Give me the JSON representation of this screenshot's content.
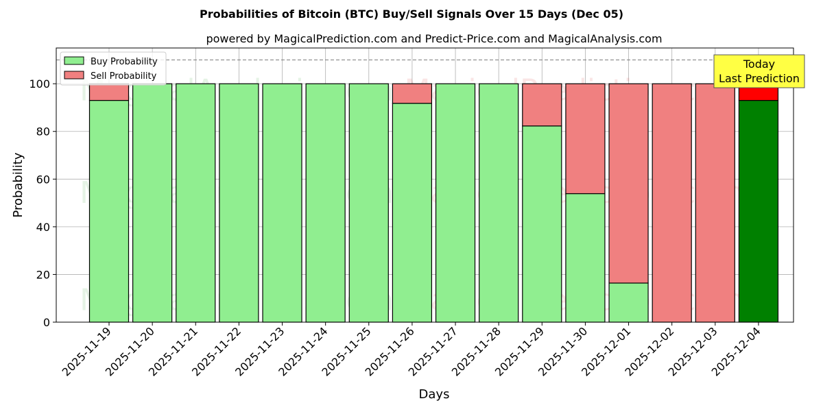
{
  "chart_data": {
    "type": "bar",
    "stacked": true,
    "title": "Probabilities of Bitcoin (BTC) Buy/Sell Signals Over 15 Days (Dec 05)",
    "subtitle": "powered by MagicalPrediction.com and Predict-Price.com and MagicalAnalysis.com",
    "xlabel": "Days",
    "ylabel": "Probability",
    "ylim": [
      0,
      115
    ],
    "yticks": [
      0,
      20,
      40,
      60,
      80,
      100
    ],
    "grid": true,
    "reference_line": 110,
    "legend_position": "top-left",
    "categories": [
      "2025-11-19",
      "2025-11-20",
      "2025-11-21",
      "2025-11-22",
      "2025-11-23",
      "2025-11-24",
      "2025-11-25",
      "2025-11-26",
      "2025-11-27",
      "2025-11-28",
      "2025-11-29",
      "2025-11-30",
      "2025-12-01",
      "2025-12-02",
      "2025-12-03",
      "2025-12-04"
    ],
    "series": [
      {
        "name": "Buy Probability",
        "color": "#90ee90",
        "values": [
          93,
          100,
          100,
          100,
          100,
          100,
          100,
          91.8,
          100,
          100,
          82.3,
          53.9,
          16.4,
          0,
          0,
          93
        ]
      },
      {
        "name": "Sell Probability",
        "color": "#f08080",
        "values": [
          7,
          0,
          0,
          0,
          0,
          0,
          0,
          8.2,
          0,
          0,
          17.7,
          46.1,
          83.6,
          100,
          100,
          7
        ]
      }
    ],
    "highlight": {
      "buy_color": "#008000",
      "sell_color": "#ff0000"
    },
    "annotation": {
      "line1": "Today",
      "line2": "Last Prediction",
      "color": "#ffff44"
    },
    "watermarks": [
      "MagicalAnalysis.com",
      "MagicalPrediction.com"
    ]
  }
}
